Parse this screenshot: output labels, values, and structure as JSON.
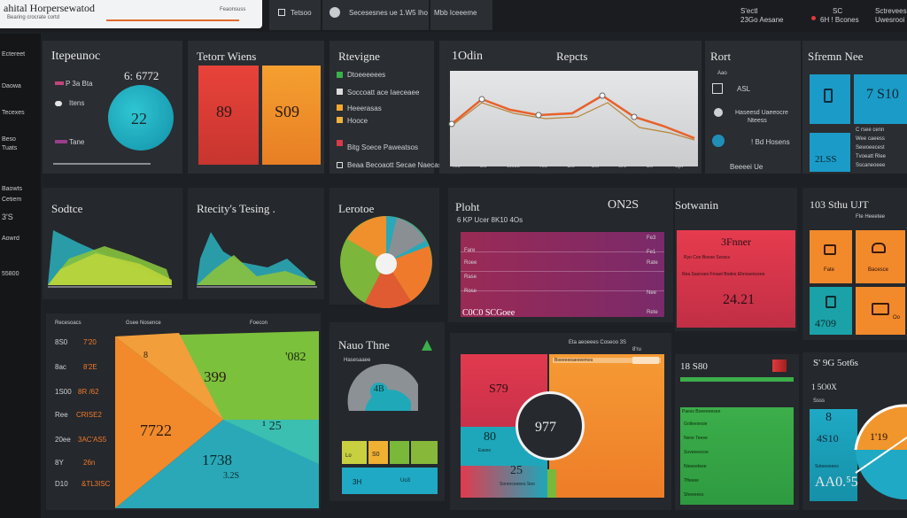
{
  "topbar": {
    "search_title": "ahital Horpersewatod",
    "search_sub": "Bearing crocrate cortd",
    "search_right": "Feaonsuss",
    "seg1_label": "Tetsoo",
    "seg2_label": "Secesesnes ue 1.W5 Iho",
    "seg3_label": "Mbb Iceeeme",
    "right1_a": "S'ectl",
    "right1_b": "23Go Aesane",
    "right2_a": "SC",
    "right2_b": "6H ! Bcones",
    "right3_a": "Sctrevees",
    "right3_b": "Uwesrooi"
  },
  "sidebar": {
    "items": [
      "Ectereet",
      "Daowa",
      "Tecexes",
      "Beso",
      "Tuats",
      "Baowts",
      "Cetiem",
      "3'S",
      "Aowrd",
      "55800"
    ]
  },
  "panels": {
    "p1": {
      "title": "Itepeunoc",
      "value": "6: 6772",
      "circle": "22",
      "rows": [
        "P 3a Bta",
        "Itens",
        "Tane"
      ]
    },
    "p2": {
      "title": "Tetorr Wiens",
      "bar1": "89",
      "bar2": "S09"
    },
    "p3": {
      "title": "Rtevigne",
      "items": [
        "Dtoeeeeees",
        "Soccoatt ace Iaeceaee",
        "Heeerasas",
        "Hooce",
        "Bitg Soece Paweatsos",
        "Beaa Becoaott Secae Naecas"
      ]
    },
    "p4": {
      "title": "1Odin",
      "x_ticks": [
        "Teo",
        "Bo",
        "Slsoe",
        "Yes",
        "Cle",
        "LM",
        "Srs",
        "Bs",
        "Spt"
      ]
    },
    "p5": {
      "title": "Repcts"
    },
    "p6": {
      "title": "Rort",
      "lines": [
        "Aao",
        "ASL",
        "Haseesd Uaeeocre",
        "Nteess",
        "! Bd Hosens",
        "Beeeei Ue"
      ]
    },
    "p7": {
      "title": "Sfremn Nee",
      "tile1": "",
      "tile2": "7 S10",
      "tile3": "2LSS",
      "tile_lines": [
        "C rsee cenn",
        "Wee caeess",
        "Sewoeecest",
        "Tvoeatt Rlee",
        "Sscaneoeee"
      ]
    },
    "p8": {
      "title": "Sodtce"
    },
    "p9": {
      "title": "Rtecity's Tesing ."
    },
    "p10": {
      "title": "Lerotoe"
    },
    "p11": {
      "title": "Ploht",
      "value": "ON2S",
      "sub": "6 KP Ucer 8K10 4Os",
      "rows": [
        "Fare",
        "Roee",
        "Rase",
        "Rose"
      ],
      "right_rows": [
        "Fe3",
        "Fe1",
        "Rate",
        "Nee",
        "Rete"
      ],
      "footer": "C0C0 SCGoee"
    },
    "p12": {
      "title": "Sotwanin",
      "value1": "3Fnner",
      "line1": "Ryo Coo Boese Soracs",
      "line2": "Rea Sasnoes Frnaet Bodes Ehnosenceee",
      "value2": "24.21"
    },
    "p13": {
      "title": "103 Sthu UJT",
      "sub": "Fte Heeetee",
      "tiles": [
        "Fate",
        "Bacesce",
        "4709",
        "Oo"
      ]
    },
    "p14": {
      "header": [
        "Recesoacs",
        "Gsee Nosence",
        "Foecon"
      ],
      "rows": [
        {
          "l": "8S0",
          "r": "7'20"
        },
        {
          "l": "8ac",
          "r": "8'2E"
        },
        {
          "l": "1S00",
          "r": "8R /62"
        },
        {
          "l": "Ree",
          "r": "CRISE2"
        },
        {
          "l": "20ee",
          "r": "3AC'AS5"
        },
        {
          "l": "8Y",
          "r": "26n"
        },
        {
          "l": "D10",
          "r": "&TL3ISC"
        }
      ],
      "v1": "399",
      "v2": "7722",
      "v3": "1738",
      "v4": "¹ 25",
      "v5": "'082",
      "v6": "8",
      "v7": "3.2S"
    },
    "p15": {
      "title": "Nauo Thne",
      "sub": "Hasesaaee",
      "gauge": "4B",
      "bars": [
        "Lo",
        "S0",
        "3H",
        "Ho",
        "Uo3"
      ]
    },
    "p16": {
      "header": "Eta aeoeees Coseoo 3S",
      "bar_label": "Boeeeeeaeeeemes",
      "v1": "8'ru",
      "v2": "S79",
      "v3": "977",
      "v4": "80",
      "v5": "25",
      "v6": "Sorenceeees Seo",
      "v7": "Easeo"
    },
    "p17": {
      "title": "18 S80",
      "sub": "Paess Boeeeeesee",
      "lines": [
        "Gotleexesie",
        "Nene Teeee",
        "Soveeeecoe",
        "Nieeeeteee",
        "Tfteeee",
        "Sheeeees"
      ]
    },
    "p18": {
      "title": "S' 9G 5ot6s",
      "v1": "1 5O0X",
      "v2": "Ssss",
      "v3": "8",
      "v4": "4S10",
      "v5": "1'19",
      "v6": "AA0.⁵5",
      "v7": "Soteeeeees"
    }
  },
  "colors": {
    "teal": "#1fa9b8",
    "orange": "#f07a2c",
    "green": "#6cb23c",
    "red": "#d83a4a",
    "magenta": "#8a2a5a",
    "gray": "#8c9196"
  }
}
